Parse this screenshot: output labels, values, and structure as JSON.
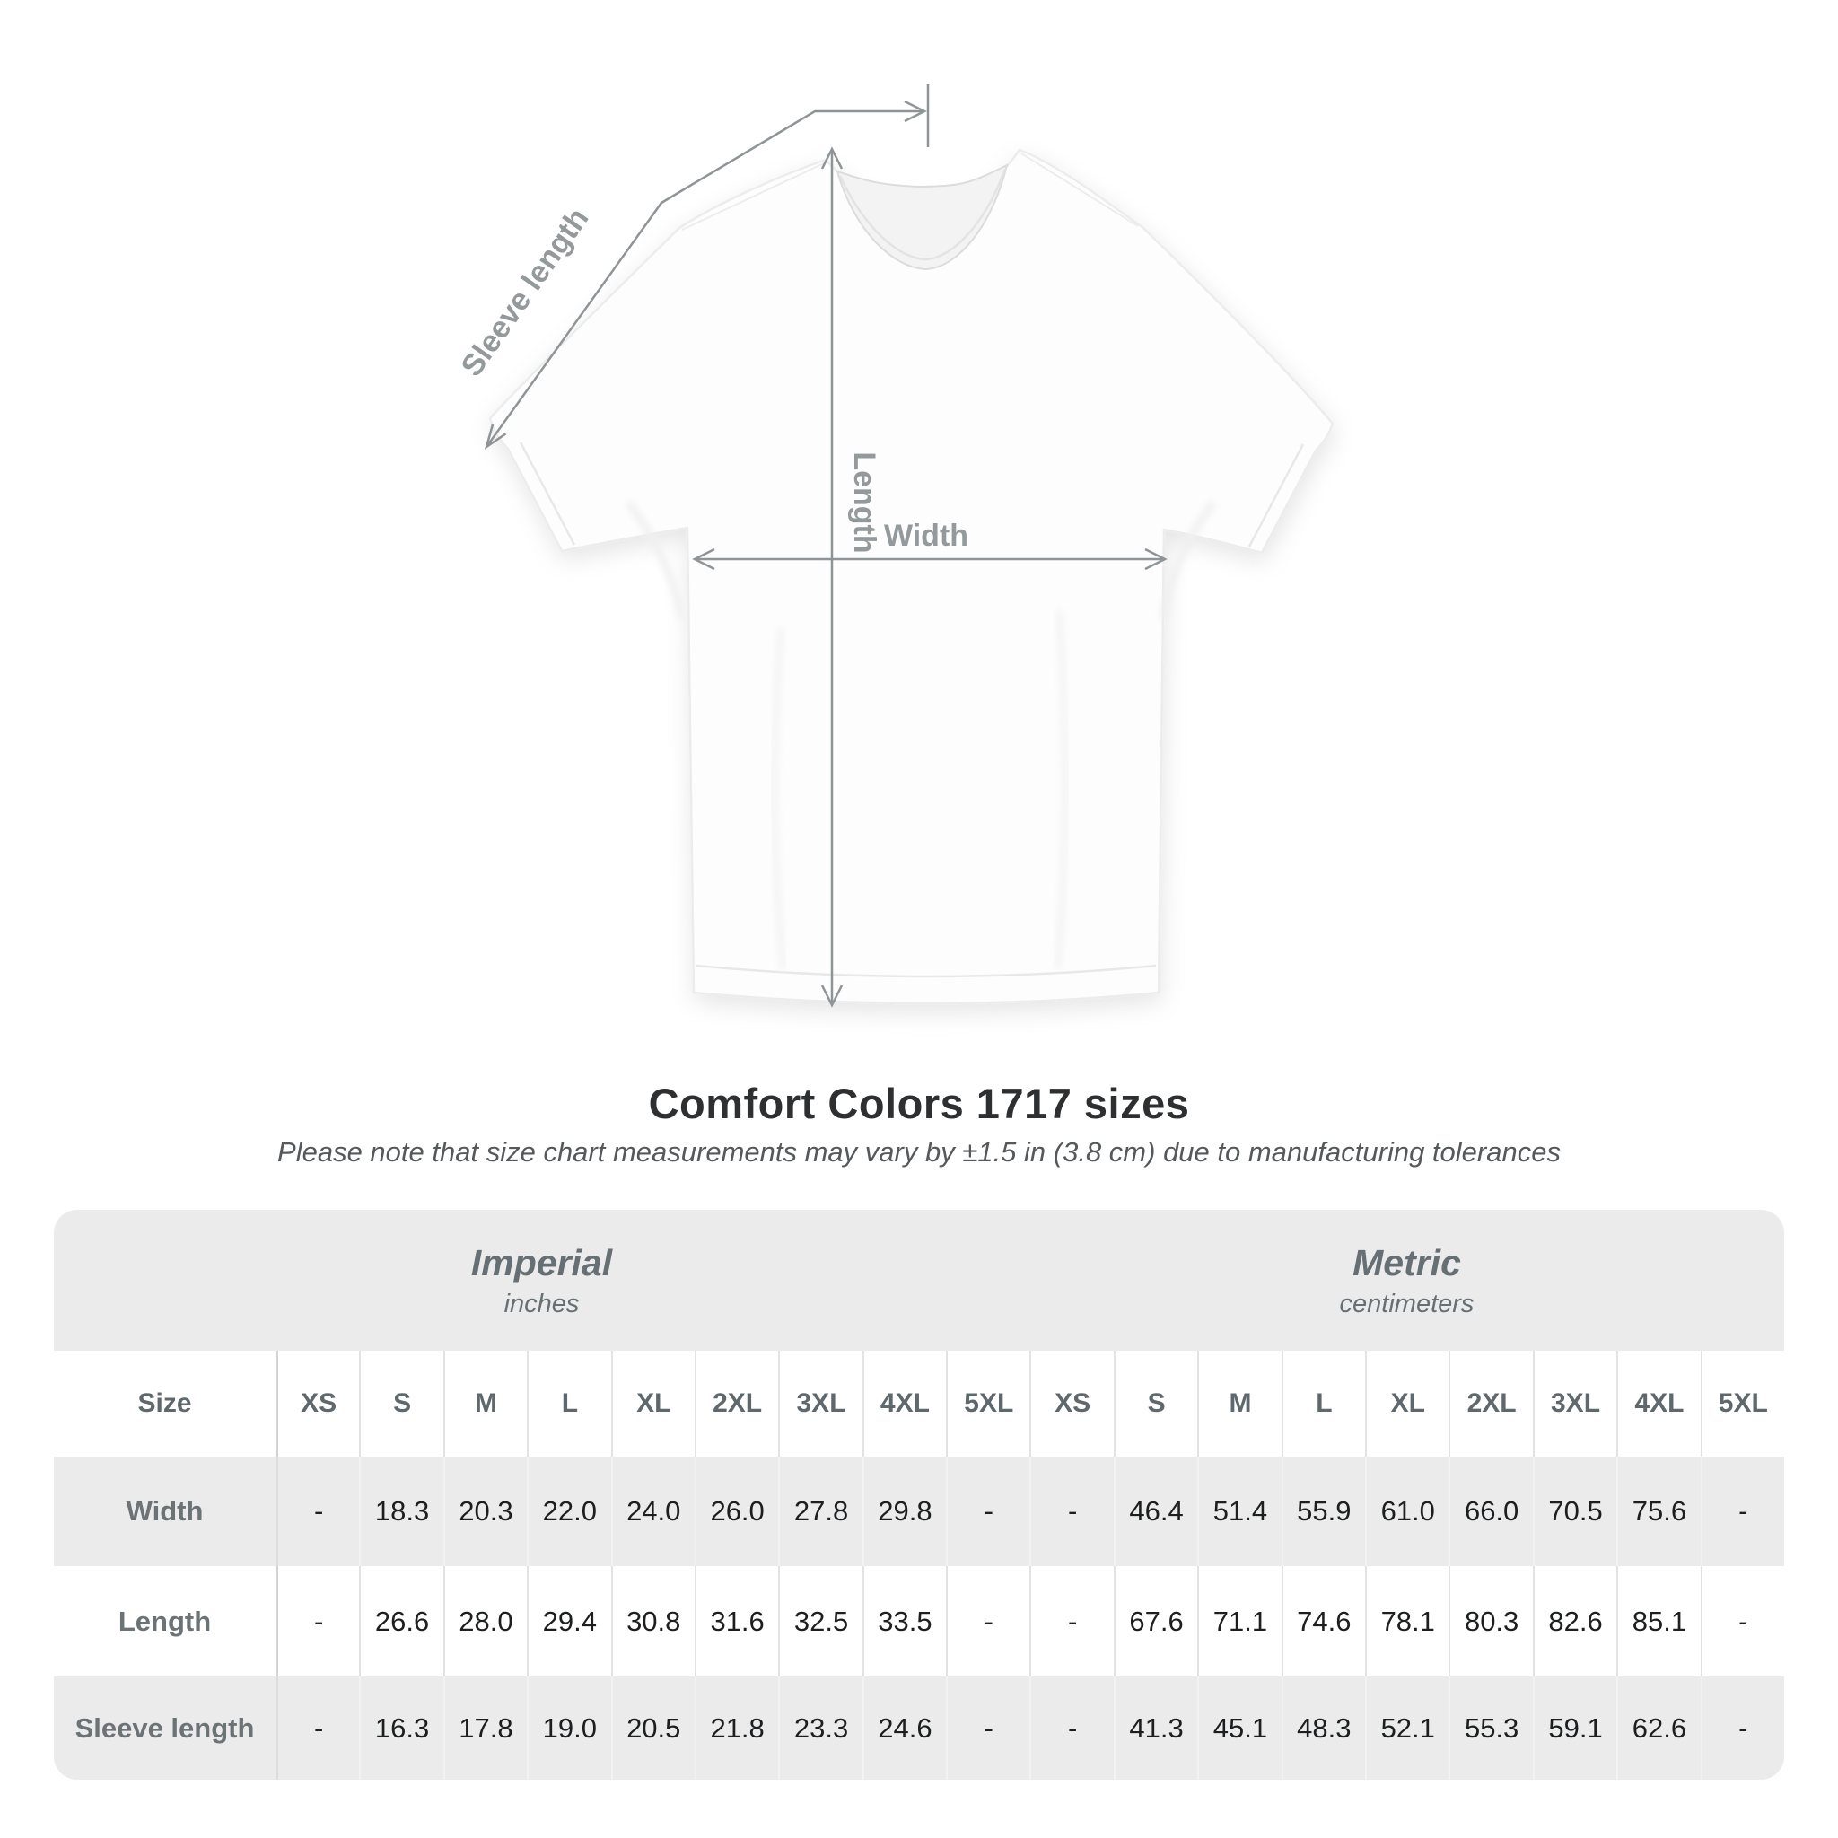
{
  "title": "Comfort Colors 1717 sizes",
  "subtitle": "Please note that size chart measurements may vary by ±1.5 in (3.8 cm) due to manufacturing tolerances",
  "diagram": {
    "sleeve_label": "Sleeve length",
    "length_label": "Length",
    "width_label": "Width",
    "line_color": "#8f9497",
    "label_color": "#94999c"
  },
  "table": {
    "groups": [
      {
        "label": "Imperial",
        "unit": "inches"
      },
      {
        "label": "Metric",
        "unit": "centimeters"
      }
    ],
    "size_header": "Size",
    "sizes": [
      "XS",
      "S",
      "M",
      "L",
      "XL",
      "2XL",
      "3XL",
      "4XL",
      "5XL"
    ],
    "rows": [
      {
        "label": "Width",
        "imperial": [
          "-",
          "18.3",
          "20.3",
          "22.0",
          "24.0",
          "26.0",
          "27.8",
          "29.8",
          "-"
        ],
        "metric": [
          "-",
          "46.4",
          "51.4",
          "55.9",
          "61.0",
          "66.0",
          "70.5",
          "75.6",
          "-"
        ]
      },
      {
        "label": "Length",
        "imperial": [
          "-",
          "26.6",
          "28.0",
          "29.4",
          "30.8",
          "31.6",
          "32.5",
          "33.5",
          "-"
        ],
        "metric": [
          "-",
          "67.6",
          "71.1",
          "74.6",
          "78.1",
          "80.3",
          "82.6",
          "85.1",
          "-"
        ]
      },
      {
        "label": "Sleeve length",
        "imperial": [
          "-",
          "16.3",
          "17.8",
          "19.0",
          "20.5",
          "21.8",
          "23.3",
          "24.6",
          "-"
        ],
        "metric": [
          "-",
          "41.3",
          "45.1",
          "48.3",
          "52.1",
          "55.3",
          "59.1",
          "62.6",
          "-"
        ]
      }
    ],
    "colors": {
      "stripe": "#ebebeb",
      "header_text": "#5f686c",
      "value_text": "#1d1e1f"
    }
  }
}
